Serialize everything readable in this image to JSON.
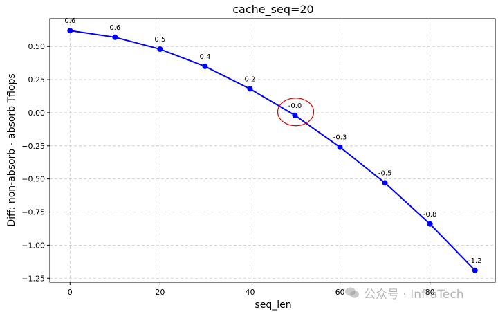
{
  "chart_data": {
    "type": "line",
    "title": "cache_seq=20",
    "xlabel": "seq_len",
    "ylabel": "Diff: non-absorb - absorb Tflops",
    "xlim": [
      -4.5,
      94.5
    ],
    "ylim": [
      -1.28,
      0.71
    ],
    "grid": true,
    "x_ticks": [
      0,
      20,
      40,
      60,
      80
    ],
    "y_ticks": [
      0.5,
      0.25,
      0.0,
      -0.25,
      -0.5,
      -0.75,
      -1.0,
      -1.25
    ],
    "y_tick_labels": [
      "0.50",
      "0.25",
      "0.00",
      "−0.25",
      "−0.50",
      "−0.75",
      "−1.00",
      "−1.25"
    ],
    "series": [
      {
        "color": "#0000ff",
        "x": [
          0,
          10,
          20,
          30,
          40,
          50,
          60,
          70,
          80,
          90
        ],
        "y": [
          0.62,
          0.57,
          0.48,
          0.35,
          0.18,
          -0.02,
          -0.26,
          -0.53,
          -0.84,
          -1.19
        ],
        "point_labels": [
          "0.6",
          "0.6",
          "0.5",
          "0.4",
          "0.2",
          "-0.0",
          "-0.3",
          "-0.5",
          "-0.8",
          "-1.2"
        ]
      }
    ],
    "highlight": {
      "x": 50,
      "y": -0.02,
      "color": "#e00000",
      "shape": "ellipse"
    }
  },
  "watermark": {
    "text": "公众号 · InfraTech",
    "icon": "wechat-icon"
  }
}
